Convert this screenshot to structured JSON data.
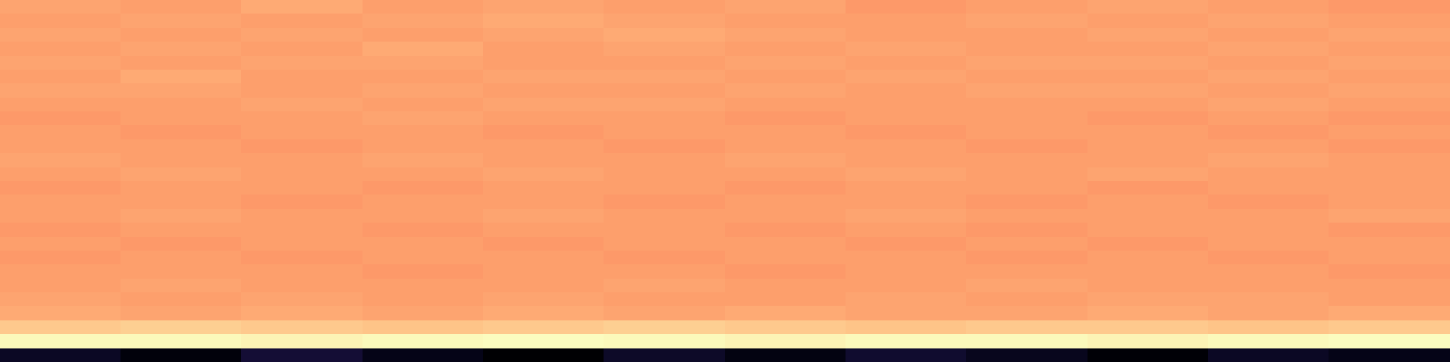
{
  "chart_data": {
    "type": "heatmap",
    "tick_labels": false,
    "cells": [
      [
        0.79,
        0.78,
        0.8,
        0.78,
        0.79,
        0.78,
        0.79,
        0.77,
        0.78,
        0.79,
        0.78,
        0.77
      ],
      [
        0.78,
        0.79,
        0.78,
        0.79,
        0.8,
        0.79,
        0.78,
        0.78,
        0.79,
        0.78,
        0.79,
        0.78
      ],
      [
        0.79,
        0.78,
        0.79,
        0.78,
        0.79,
        0.8,
        0.79,
        0.78,
        0.78,
        0.79,
        0.78,
        0.79
      ],
      [
        0.78,
        0.79,
        0.78,
        0.8,
        0.78,
        0.79,
        0.78,
        0.79,
        0.78,
        0.78,
        0.79,
        0.78
      ],
      [
        0.79,
        0.78,
        0.79,
        0.79,
        0.78,
        0.78,
        0.79,
        0.78,
        0.79,
        0.79,
        0.78,
        0.79
      ],
      [
        0.78,
        0.8,
        0.78,
        0.78,
        0.79,
        0.79,
        0.78,
        0.79,
        0.78,
        0.78,
        0.79,
        0.78
      ],
      [
        0.79,
        0.79,
        0.78,
        0.79,
        0.78,
        0.78,
        0.79,
        0.78,
        0.79,
        0.79,
        0.78,
        0.79
      ],
      [
        0.78,
        0.78,
        0.79,
        0.78,
        0.79,
        0.79,
        0.78,
        0.78,
        0.78,
        0.78,
        0.79,
        0.78
      ],
      [
        0.77,
        0.78,
        0.78,
        0.79,
        0.78,
        0.78,
        0.77,
        0.78,
        0.78,
        0.77,
        0.78,
        0.77
      ],
      [
        0.78,
        0.77,
        0.78,
        0.78,
        0.77,
        0.78,
        0.78,
        0.77,
        0.78,
        0.78,
        0.77,
        0.78
      ],
      [
        0.78,
        0.78,
        0.77,
        0.78,
        0.78,
        0.77,
        0.78,
        0.78,
        0.77,
        0.78,
        0.78,
        0.77
      ],
      [
        0.79,
        0.78,
        0.78,
        0.79,
        0.78,
        0.78,
        0.79,
        0.78,
        0.78,
        0.78,
        0.79,
        0.78
      ],
      [
        0.78,
        0.79,
        0.78,
        0.78,
        0.79,
        0.78,
        0.78,
        0.79,
        0.78,
        0.79,
        0.78,
        0.78
      ],
      [
        0.77,
        0.78,
        0.78,
        0.77,
        0.78,
        0.78,
        0.77,
        0.78,
        0.78,
        0.77,
        0.78,
        0.78
      ],
      [
        0.78,
        0.78,
        0.77,
        0.78,
        0.78,
        0.77,
        0.78,
        0.78,
        0.77,
        0.78,
        0.77,
        0.78
      ],
      [
        0.78,
        0.79,
        0.78,
        0.78,
        0.79,
        0.78,
        0.78,
        0.79,
        0.78,
        0.78,
        0.78,
        0.79
      ],
      [
        0.77,
        0.78,
        0.78,
        0.77,
        0.78,
        0.78,
        0.77,
        0.78,
        0.77,
        0.78,
        0.78,
        0.77
      ],
      [
        0.78,
        0.77,
        0.78,
        0.78,
        0.77,
        0.78,
        0.78,
        0.77,
        0.78,
        0.77,
        0.78,
        0.78
      ],
      [
        0.77,
        0.78,
        0.77,
        0.78,
        0.78,
        0.77,
        0.78,
        0.78,
        0.77,
        0.78,
        0.77,
        0.78
      ],
      [
        0.78,
        0.78,
        0.78,
        0.77,
        0.78,
        0.78,
        0.77,
        0.78,
        0.78,
        0.78,
        0.78,
        0.77
      ],
      [
        0.78,
        0.79,
        0.78,
        0.78,
        0.78,
        0.79,
        0.78,
        0.78,
        0.79,
        0.78,
        0.78,
        0.78
      ],
      [
        0.79,
        0.78,
        0.79,
        0.78,
        0.79,
        0.78,
        0.78,
        0.79,
        0.78,
        0.79,
        0.79,
        0.78
      ],
      [
        0.8,
        0.79,
        0.8,
        0.79,
        0.8,
        0.79,
        0.8,
        0.79,
        0.79,
        0.8,
        0.79,
        0.8
      ],
      [
        0.86,
        0.87,
        0.86,
        0.85,
        0.86,
        0.87,
        0.86,
        0.85,
        0.86,
        0.86,
        0.85,
        0.86
      ],
      [
        0.95,
        0.95,
        0.94,
        0.95,
        0.96,
        0.95,
        0.94,
        0.95,
        0.95,
        0.94,
        0.95,
        0.96
      ],
      [
        0.12,
        0.08,
        0.15,
        0.1,
        0.06,
        0.13,
        0.09,
        0.14,
        0.11,
        0.07,
        0.12,
        0.1
      ]
    ]
  }
}
